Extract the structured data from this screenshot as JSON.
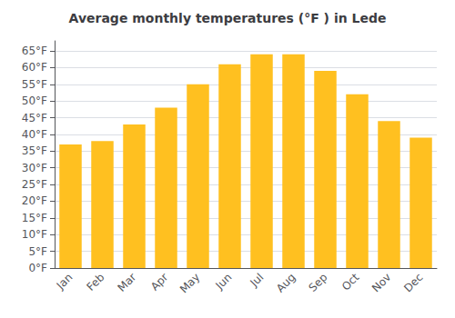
{
  "chart_data": {
    "type": "bar",
    "title": "Average monthly temperatures (°F ) in Lede",
    "categories": [
      "Jan",
      "Feb",
      "Mar",
      "Apr",
      "May",
      "Jun",
      "Jul",
      "Aug",
      "Sep",
      "Oct",
      "Nov",
      "Dec"
    ],
    "values": [
      37,
      38,
      43,
      48,
      55,
      61,
      64,
      64,
      59,
      52,
      44,
      39
    ],
    "color": "#FFC020",
    "ylim": [
      0,
      68
    ],
    "yticks": [
      {
        "value": 0,
        "label": "0°F"
      },
      {
        "value": 5,
        "label": "5°F"
      },
      {
        "value": 10,
        "label": "10°F"
      },
      {
        "value": 15,
        "label": "15°F"
      },
      {
        "value": 20,
        "label": "20°F"
      },
      {
        "value": 25,
        "label": "25°F"
      },
      {
        "value": 30,
        "label": "30°F"
      },
      {
        "value": 35,
        "label": "35°F"
      },
      {
        "value": 40,
        "label": "40°F"
      },
      {
        "value": 45,
        "label": "45°F"
      },
      {
        "value": 50,
        "label": "50°F"
      },
      {
        "value": 55,
        "label": "55°F"
      },
      {
        "value": 60,
        "label": "60°F"
      },
      {
        "value": 65,
        "label": "65°F"
      }
    ],
    "grid": true
  }
}
